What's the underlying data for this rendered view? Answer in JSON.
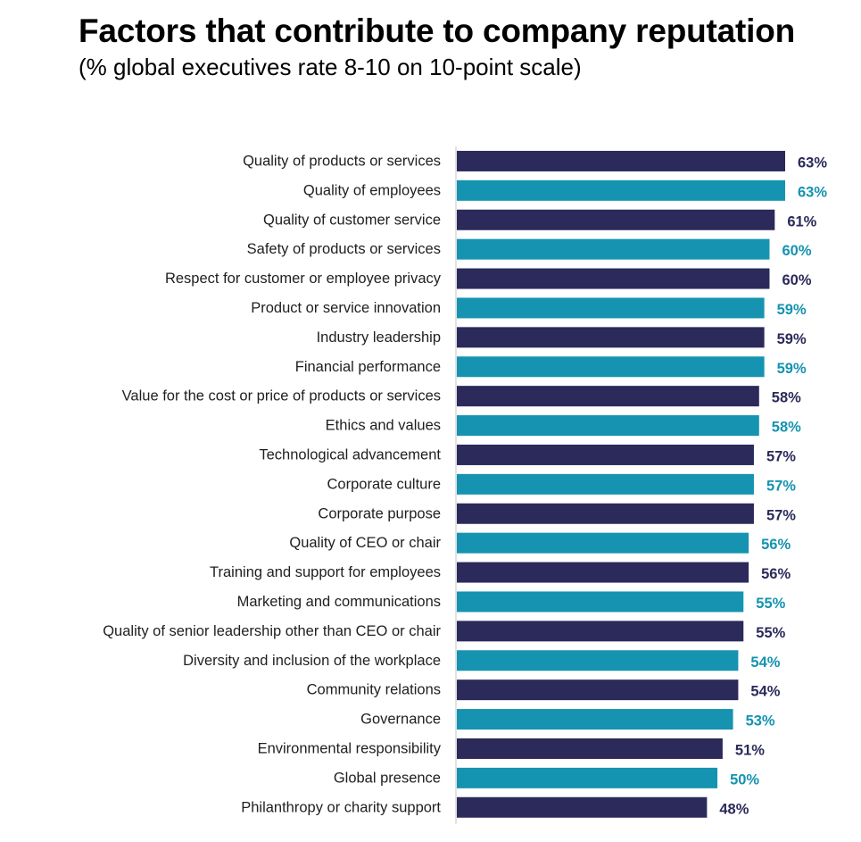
{
  "chart_data": {
    "type": "bar",
    "orientation": "horizontal",
    "title": "Factors that contribute to company reputation",
    "subtitle": "(% global executives rate 8-10 on 10-point scale)",
    "categories": [
      "Quality of products or services",
      "Quality of employees",
      "Quality of customer service",
      "Safety of products or services",
      "Respect for customer or employee privacy",
      "Product or service innovation",
      "Industry leadership",
      "Financial performance",
      "Value for the cost or price of products or services",
      "Ethics and values",
      "Technological advancement",
      "Corporate culture",
      "Corporate purpose",
      "Quality of CEO or chair",
      "Training and support for employees",
      "Marketing and communications",
      "Quality of senior leadership other than CEO or chair",
      "Diversity and inclusion of the workplace",
      "Community relations",
      "Governance",
      "Environmental responsibility",
      "Global presence",
      "Philanthropy or charity support"
    ],
    "values": [
      63,
      63,
      61,
      60,
      60,
      59,
      59,
      59,
      58,
      58,
      57,
      57,
      57,
      56,
      56,
      55,
      55,
      54,
      54,
      53,
      51,
      50,
      48
    ],
    "value_labels": [
      "63%",
      "63%",
      "61%",
      "60%",
      "60%",
      "59%",
      "59%",
      "59%",
      "58%",
      "58%",
      "57%",
      "57%",
      "57%",
      "56%",
      "56%",
      "55%",
      "55%",
      "54%",
      "54%",
      "53%",
      "51%",
      "50%",
      "48%"
    ],
    "colors": [
      "#2b2a5a",
      "#1593b0"
    ],
    "label_colors": [
      "#2b2a5a",
      "#1593b0"
    ],
    "axis_color": "#d9d9d9",
    "xlim": [
      0,
      63
    ],
    "grid": false,
    "legend": "none"
  }
}
